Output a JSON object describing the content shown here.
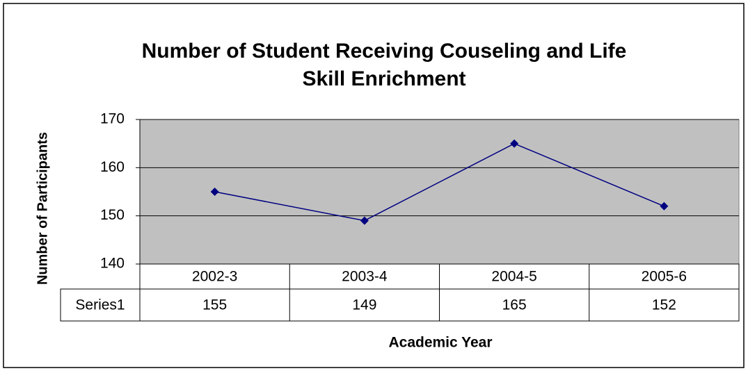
{
  "chart_data": {
    "type": "line",
    "title": "Number of Student Receiving Couseling and Life Skill Enrichment",
    "x_label": "Academic Year",
    "y_label": "Number of Participants",
    "categories": [
      "2002-3",
      "2003-4",
      "2004-5",
      "2005-6"
    ],
    "series": [
      {
        "name": "Series1",
        "color": "#000080",
        "values": [
          155,
          149,
          165,
          152
        ]
      }
    ],
    "ylim": [
      140,
      170
    ],
    "yticks": [
      140,
      150,
      160,
      170
    ],
    "grid": true,
    "plot_background": "#c0c0c0"
  }
}
